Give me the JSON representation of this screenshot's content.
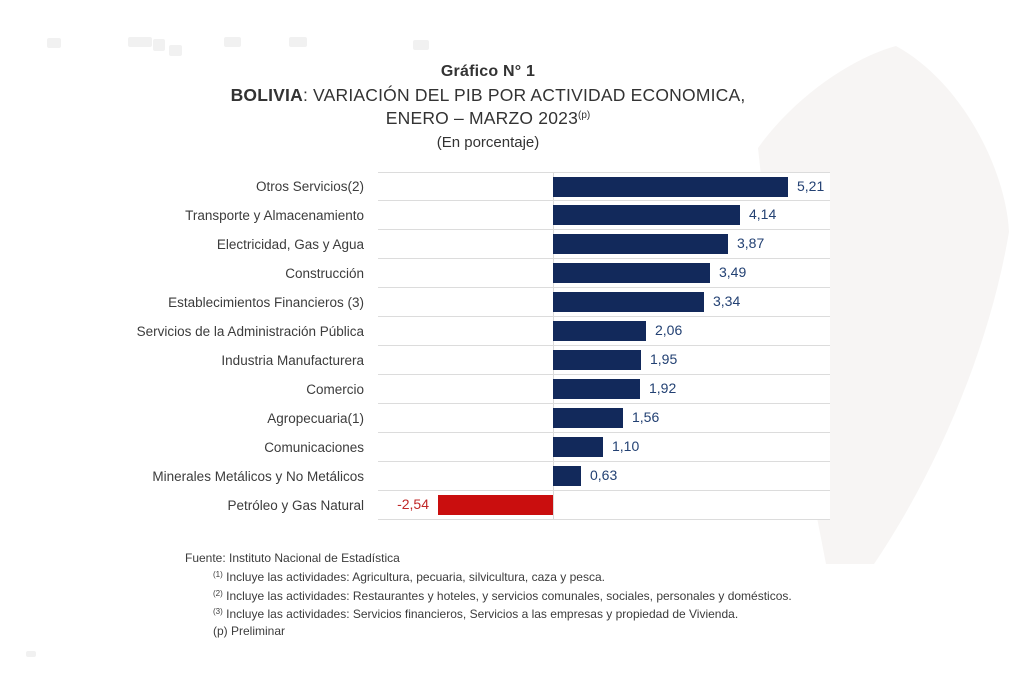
{
  "title": {
    "line1": "Gráfico N° 1",
    "line2_bold": "BOLIVIA",
    "line2_rest": ": VARIACIÓN DEL PIB POR ACTIVIDAD ECONOMICA,",
    "line3": "ENERO – MARZO 2023",
    "line3_sup": "(p)",
    "line4": "(En porcentaje)"
  },
  "chart_data": {
    "type": "bar",
    "orientation": "horizontal",
    "title": "BOLIVIA: VARIACIÓN DEL PIB POR ACTIVIDAD ECONOMICA, ENERO – MARZO 2023 (En porcentaje)",
    "categories": [
      "Otros Servicios(2)",
      "Transporte y Almacenamiento",
      "Electricidad, Gas y Agua",
      "Construcción",
      "Establecimientos Financieros (3)",
      "Servicios de la Administración Pública",
      "Industria Manufacturera",
      "Comercio",
      "Agropecuaria(1)",
      "Comunicaciones",
      "Minerales Metálicos y No Metálicos",
      "Petróleo y Gas Natural"
    ],
    "values": [
      5.21,
      4.14,
      3.87,
      3.49,
      3.34,
      2.06,
      1.95,
      1.92,
      1.56,
      1.1,
      0.63,
      -2.54
    ],
    "value_labels": [
      "5,21",
      "4,14",
      "3,87",
      "3,49",
      "3,34",
      "2,06",
      "1,95",
      "1,92",
      "1,56",
      "1,10",
      "0,63",
      "-2,54"
    ],
    "xlim": [
      -4.0,
      6.1
    ],
    "grid": "horizontal row separators, vertical zero axis",
    "legend": "none",
    "colors": {
      "bar_positive": "#12295b",
      "bar_negative": "#ca0e0e",
      "value_text_positive": "#234173",
      "value_text_negative": "#c02727",
      "separator": "#dcdcdc"
    }
  },
  "footer": {
    "fuente": "Fuente: Instituto Nacional de Estadística",
    "notes": [
      {
        "sup": "(1)",
        "text": "Incluye las actividades: Agricultura, pecuaria, silvicultura, caza y pesca."
      },
      {
        "sup": "(2)",
        "text": "Incluye las actividades: Restaurantes y hoteles, y servicios comunales, sociales, personales y domésticos."
      },
      {
        "sup": "(3)",
        "text": "Incluye las actividades: Servicios financieros, Servicios a las empresas y propiedad de Vivienda."
      },
      {
        "sup": "",
        "text": "(p) Preliminar"
      }
    ]
  }
}
